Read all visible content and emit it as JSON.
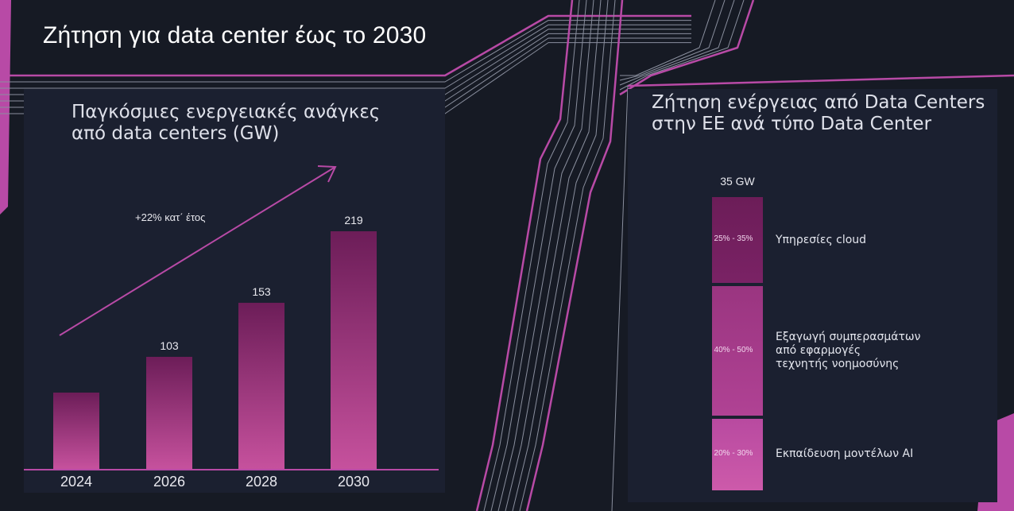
{
  "page_title": "Ζήτηση για data center έως το 2030",
  "colors": {
    "background": "#161a24",
    "panel": "#1b2030",
    "accent": "#b84aa6",
    "bar_light": "#c6519d",
    "bar_dark": "#6c1d58"
  },
  "chart_data": [
    {
      "type": "bar",
      "title": "Παγκόσμιες ενεργειακές ανάγκες\nαπό data centers (GW)",
      "categories": [
        "2024",
        "2026",
        "2028",
        "2030"
      ],
      "values": [
        70,
        103,
        153,
        219
      ],
      "data_labels": [
        "",
        "103",
        "153",
        "219"
      ],
      "ylim": [
        0,
        240
      ],
      "annotation": "+22% κατ΄ έτος",
      "grid": false,
      "legend": "none"
    },
    {
      "type": "bar",
      "stacked": true,
      "title": "Ζήτηση ενέργειας από Data Centers\nστην ΕΕ ανά τύπο Data Center",
      "total_label": "35 GW",
      "segments": [
        {
          "name": "Υπηρεσίες cloud",
          "range_label": "25% - 35%",
          "share": 30
        },
        {
          "name": "Εξαγωγή συμπερασμάτων\nαπό εφαρμογές\nτεχνητής νοημοσύνης",
          "range_label": "40% - 50%",
          "share": 45
        },
        {
          "name": "Εκπαίδευση μοντέλων AI",
          "range_label": "20% - 30%",
          "share": 25
        }
      ]
    }
  ]
}
